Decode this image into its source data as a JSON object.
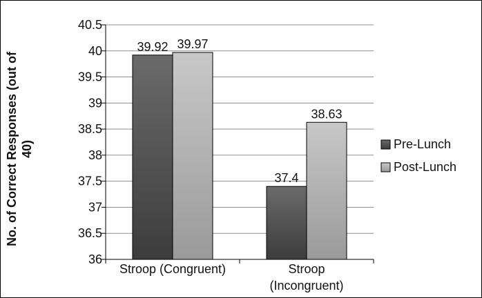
{
  "chart_data": {
    "type": "bar",
    "title": "",
    "xlabel": "",
    "ylabel_lines": [
      "No. of Correct Responses (out of",
      "40)"
    ],
    "categories": [
      [
        "Stroop (Congruent)"
      ],
      [
        "Stroop",
        "(Incongruent)"
      ]
    ],
    "series": [
      {
        "name": "Pre-Lunch",
        "values": [
          39.92,
          37.4
        ],
        "color": "#555555"
      },
      {
        "name": "Post-Lunch",
        "values": [
          39.97,
          38.63
        ],
        "color": "#b5b5b5"
      }
    ],
    "ylim": [
      36,
      40.5
    ],
    "yticks": [
      "36",
      "36.5",
      "37",
      "37.5",
      "38",
      "38.5",
      "39",
      "39.5",
      "40",
      "40.5"
    ],
    "grid": true,
    "legend": "right"
  }
}
